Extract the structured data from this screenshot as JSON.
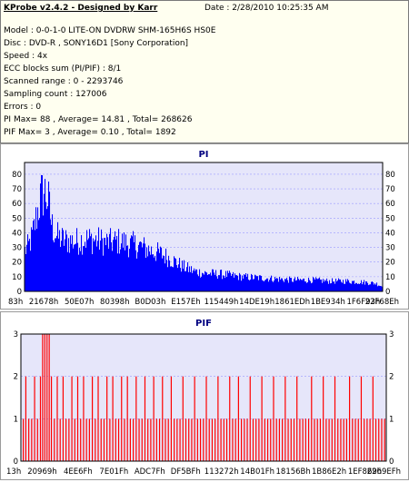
{
  "header": {
    "title": "KProbe v2.4.2 - Designed by Karr",
    "date": "Date : 2/28/2010 10:25:35 AM"
  },
  "info_lines": [
    "Model : 0-0-1-0 LITE-ON DVDRW SHM-165H6S HS0E",
    "Disc : DVD-R , SONY16D1 [Sony Corporation]",
    "Speed : 4x",
    "ECC blocks sum (PI/PIF) : 8/1",
    "Scanned range : 0 - 2293746",
    "Sampling count : 127006",
    "Errors : 0",
    "PI Max= 88 , Average= 14.81 , Total= 268626",
    "PIF Max= 3 , Average= 0.10 , Total= 1892"
  ],
  "colors": {
    "plot_bg": "#e6e6fa",
    "pi_bar": "#0000ff",
    "pif_bar": "#ff0000",
    "title": "#000080"
  },
  "chart_data": [
    {
      "type": "area",
      "title": "PI",
      "ylim": [
        0,
        88
      ],
      "yticks": [
        0,
        10,
        20,
        30,
        40,
        50,
        60,
        70,
        80
      ],
      "grid": true,
      "xlim": [
        0,
        1
      ],
      "x_tick_labels": [
        "83h",
        "21678h",
        "50E07h",
        "80398h",
        "B0D03h",
        "E157Eh",
        "115449h",
        "14DE19h",
        "1861EDh",
        "1BE934h",
        "1F6F93h",
        "22F68Eh"
      ],
      "envelope": [
        {
          "x": 0.0,
          "y": 36
        },
        {
          "x": 0.01,
          "y": 40
        },
        {
          "x": 0.02,
          "y": 48
        },
        {
          "x": 0.035,
          "y": 70
        },
        {
          "x": 0.045,
          "y": 84
        },
        {
          "x": 0.055,
          "y": 88
        },
        {
          "x": 0.065,
          "y": 80
        },
        {
          "x": 0.075,
          "y": 58
        },
        {
          "x": 0.09,
          "y": 48
        },
        {
          "x": 0.11,
          "y": 45
        },
        {
          "x": 0.14,
          "y": 44
        },
        {
          "x": 0.17,
          "y": 46
        },
        {
          "x": 0.2,
          "y": 45
        },
        {
          "x": 0.23,
          "y": 43
        },
        {
          "x": 0.26,
          "y": 44
        },
        {
          "x": 0.29,
          "y": 42
        },
        {
          "x": 0.32,
          "y": 40
        },
        {
          "x": 0.35,
          "y": 36
        },
        {
          "x": 0.38,
          "y": 33
        },
        {
          "x": 0.41,
          "y": 28
        },
        {
          "x": 0.44,
          "y": 22
        },
        {
          "x": 0.47,
          "y": 18
        },
        {
          "x": 0.5,
          "y": 16
        },
        {
          "x": 0.55,
          "y": 15
        },
        {
          "x": 0.6,
          "y": 13
        },
        {
          "x": 0.65,
          "y": 12
        },
        {
          "x": 0.7,
          "y": 11
        },
        {
          "x": 0.75,
          "y": 10
        },
        {
          "x": 0.8,
          "y": 10
        },
        {
          "x": 0.85,
          "y": 9
        },
        {
          "x": 0.9,
          "y": 9
        },
        {
          "x": 0.95,
          "y": 8
        },
        {
          "x": 0.98,
          "y": 7
        },
        {
          "x": 1.0,
          "y": 4
        }
      ]
    },
    {
      "type": "bar",
      "title": "PIF",
      "ylim": [
        0,
        3
      ],
      "yticks": [
        0,
        1,
        2,
        3
      ],
      "grid": true,
      "xlim": [
        0,
        1
      ],
      "x_tick_labels": [
        "13h",
        "20969h",
        "4EE6Fh",
        "7E01Fh",
        "ADC7Fh",
        "DF5BFh",
        "113272h",
        "14B01Fh",
        "18156Bh",
        "1B86E2h",
        "1EF869h",
        "2269EFh"
      ],
      "spikes": [
        {
          "x": 0.005,
          "y": 1
        },
        {
          "x": 0.012,
          "y": 2
        },
        {
          "x": 0.02,
          "y": 1
        },
        {
          "x": 0.028,
          "y": 1
        },
        {
          "x": 0.036,
          "y": 2
        },
        {
          "x": 0.044,
          "y": 1
        },
        {
          "x": 0.052,
          "y": 2
        },
        {
          "x": 0.058,
          "y": 3
        },
        {
          "x": 0.064,
          "y": 3
        },
        {
          "x": 0.07,
          "y": 3
        },
        {
          "x": 0.076,
          "y": 3
        },
        {
          "x": 0.082,
          "y": 2
        },
        {
          "x": 0.09,
          "y": 1
        },
        {
          "x": 0.098,
          "y": 2
        },
        {
          "x": 0.106,
          "y": 1
        },
        {
          "x": 0.114,
          "y": 2
        },
        {
          "x": 0.122,
          "y": 1
        },
        {
          "x": 0.13,
          "y": 1
        },
        {
          "x": 0.138,
          "y": 2
        },
        {
          "x": 0.146,
          "y": 1
        },
        {
          "x": 0.154,
          "y": 2
        },
        {
          "x": 0.162,
          "y": 1
        },
        {
          "x": 0.17,
          "y": 2
        },
        {
          "x": 0.178,
          "y": 1
        },
        {
          "x": 0.186,
          "y": 1
        },
        {
          "x": 0.194,
          "y": 2
        },
        {
          "x": 0.202,
          "y": 1
        },
        {
          "x": 0.21,
          "y": 2
        },
        {
          "x": 0.218,
          "y": 1
        },
        {
          "x": 0.226,
          "y": 1
        },
        {
          "x": 0.234,
          "y": 2
        },
        {
          "x": 0.242,
          "y": 1
        },
        {
          "x": 0.25,
          "y": 2
        },
        {
          "x": 0.258,
          "y": 1
        },
        {
          "x": 0.266,
          "y": 1
        },
        {
          "x": 0.274,
          "y": 2
        },
        {
          "x": 0.282,
          "y": 1
        },
        {
          "x": 0.29,
          "y": 2
        },
        {
          "x": 0.298,
          "y": 1
        },
        {
          "x": 0.306,
          "y": 1
        },
        {
          "x": 0.314,
          "y": 2
        },
        {
          "x": 0.322,
          "y": 1
        },
        {
          "x": 0.33,
          "y": 1
        },
        {
          "x": 0.338,
          "y": 2
        },
        {
          "x": 0.346,
          "y": 1
        },
        {
          "x": 0.354,
          "y": 1
        },
        {
          "x": 0.362,
          "y": 2
        },
        {
          "x": 0.37,
          "y": 1
        },
        {
          "x": 0.378,
          "y": 1
        },
        {
          "x": 0.386,
          "y": 2
        },
        {
          "x": 0.394,
          "y": 1
        },
        {
          "x": 0.402,
          "y": 1
        },
        {
          "x": 0.41,
          "y": 2
        },
        {
          "x": 0.418,
          "y": 1
        },
        {
          "x": 0.426,
          "y": 1
        },
        {
          "x": 0.434,
          "y": 1
        },
        {
          "x": 0.442,
          "y": 2
        },
        {
          "x": 0.45,
          "y": 1
        },
        {
          "x": 0.458,
          "y": 1
        },
        {
          "x": 0.466,
          "y": 1
        },
        {
          "x": 0.474,
          "y": 2
        },
        {
          "x": 0.482,
          "y": 1
        },
        {
          "x": 0.49,
          "y": 1
        },
        {
          "x": 0.498,
          "y": 1
        },
        {
          "x": 0.506,
          "y": 2
        },
        {
          "x": 0.514,
          "y": 1
        },
        {
          "x": 0.522,
          "y": 1
        },
        {
          "x": 0.53,
          "y": 1
        },
        {
          "x": 0.538,
          "y": 2
        },
        {
          "x": 0.546,
          "y": 1
        },
        {
          "x": 0.554,
          "y": 1
        },
        {
          "x": 0.562,
          "y": 1
        },
        {
          "x": 0.57,
          "y": 2
        },
        {
          "x": 0.578,
          "y": 1
        },
        {
          "x": 0.586,
          "y": 1
        },
        {
          "x": 0.594,
          "y": 2
        },
        {
          "x": 0.602,
          "y": 1
        },
        {
          "x": 0.61,
          "y": 1
        },
        {
          "x": 0.618,
          "y": 1
        },
        {
          "x": 0.626,
          "y": 2
        },
        {
          "x": 0.634,
          "y": 1
        },
        {
          "x": 0.642,
          "y": 1
        },
        {
          "x": 0.65,
          "y": 1
        },
        {
          "x": 0.658,
          "y": 2
        },
        {
          "x": 0.666,
          "y": 1
        },
        {
          "x": 0.674,
          "y": 1
        },
        {
          "x": 0.682,
          "y": 1
        },
        {
          "x": 0.69,
          "y": 2
        },
        {
          "x": 0.698,
          "y": 1
        },
        {
          "x": 0.706,
          "y": 1
        },
        {
          "x": 0.714,
          "y": 1
        },
        {
          "x": 0.722,
          "y": 2
        },
        {
          "x": 0.73,
          "y": 1
        },
        {
          "x": 0.738,
          "y": 1
        },
        {
          "x": 0.746,
          "y": 1
        },
        {
          "x": 0.754,
          "y": 2
        },
        {
          "x": 0.762,
          "y": 1
        },
        {
          "x": 0.77,
          "y": 1
        },
        {
          "x": 0.778,
          "y": 1
        },
        {
          "x": 0.786,
          "y": 1
        },
        {
          "x": 0.794,
          "y": 2
        },
        {
          "x": 0.802,
          "y": 1
        },
        {
          "x": 0.81,
          "y": 1
        },
        {
          "x": 0.818,
          "y": 1
        },
        {
          "x": 0.826,
          "y": 2
        },
        {
          "x": 0.834,
          "y": 1
        },
        {
          "x": 0.842,
          "y": 1
        },
        {
          "x": 0.85,
          "y": 1
        },
        {
          "x": 0.858,
          "y": 2
        },
        {
          "x": 0.866,
          "y": 1
        },
        {
          "x": 0.874,
          "y": 1
        },
        {
          "x": 0.882,
          "y": 1
        },
        {
          "x": 0.89,
          "y": 1
        },
        {
          "x": 0.898,
          "y": 2
        },
        {
          "x": 0.906,
          "y": 1
        },
        {
          "x": 0.914,
          "y": 1
        },
        {
          "x": 0.922,
          "y": 1
        },
        {
          "x": 0.93,
          "y": 2
        },
        {
          "x": 0.938,
          "y": 1
        },
        {
          "x": 0.946,
          "y": 1
        },
        {
          "x": 0.954,
          "y": 1
        },
        {
          "x": 0.962,
          "y": 2
        },
        {
          "x": 0.97,
          "y": 1
        },
        {
          "x": 0.978,
          "y": 1
        },
        {
          "x": 0.986,
          "y": 1
        },
        {
          "x": 0.994,
          "y": 1
        }
      ]
    }
  ]
}
